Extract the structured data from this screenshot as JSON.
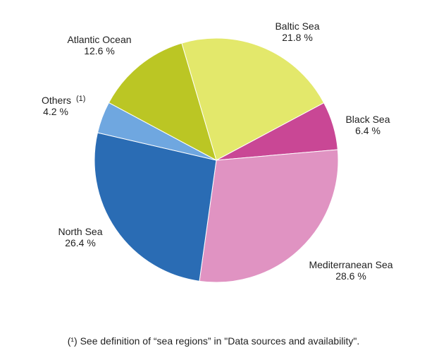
{
  "chart_data": {
    "type": "pie",
    "title": "",
    "unit": "%",
    "slices": [
      {
        "label": "Baltic Sea",
        "value": 21.8,
        "value_label": "21.8 %",
        "color": "#e3e86b"
      },
      {
        "label": "Black Sea",
        "value": 6.4,
        "value_label": "6.4 %",
        "color": "#c94795"
      },
      {
        "label": "Mediterranean  Sea",
        "value": 28.6,
        "value_label": "28.6 %",
        "color": "#e093c2"
      },
      {
        "label": "North Sea",
        "value": 26.4,
        "value_label": "26.4 %",
        "color": "#2a6cb4"
      },
      {
        "label": "Others",
        "label_sup": "(1)",
        "value": 4.2,
        "value_label": "4.2 %",
        "color": "#6fa7e0"
      },
      {
        "label": "Atlantic Ocean",
        "value": 12.6,
        "value_label": "12.6 %",
        "color": "#bbc624"
      }
    ]
  },
  "footnote": "(¹) See definition of “sea regions” in \"Data sources and availability\"."
}
